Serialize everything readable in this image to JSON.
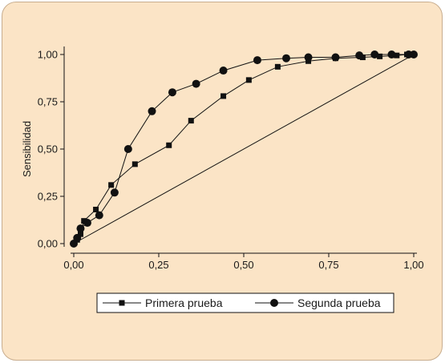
{
  "chart_data": {
    "type": "line",
    "title": "",
    "xlabel": "",
    "ylabel": "Sensibilidad",
    "xlim": [
      0,
      1
    ],
    "ylim": [
      0,
      1
    ],
    "x_ticks": [
      "0,00",
      "0,25",
      "0,50",
      "0,75",
      "1,00"
    ],
    "y_ticks": [
      "0,00",
      "0,25",
      "0,50",
      "0,75",
      "1,00"
    ],
    "grid": false,
    "legend_position": "bottom",
    "reference_line": [
      [
        0,
        0
      ],
      [
        1,
        1
      ]
    ],
    "series": [
      {
        "name": "Primera prueba",
        "marker": "square",
        "points": [
          [
            0.0,
            0.0
          ],
          [
            0.01,
            0.02
          ],
          [
            0.02,
            0.05
          ],
          [
            0.03,
            0.12
          ],
          [
            0.065,
            0.18
          ],
          [
            0.11,
            0.31
          ],
          [
            0.18,
            0.42
          ],
          [
            0.28,
            0.52
          ],
          [
            0.345,
            0.65
          ],
          [
            0.44,
            0.78
          ],
          [
            0.515,
            0.865
          ],
          [
            0.6,
            0.935
          ],
          [
            0.69,
            0.965
          ],
          [
            0.77,
            0.98
          ],
          [
            0.85,
            0.985
          ],
          [
            0.9,
            0.99
          ],
          [
            0.95,
            0.995
          ],
          [
            0.98,
            1.0
          ],
          [
            1.0,
            1.0
          ]
        ]
      },
      {
        "name": "Segunda prueba",
        "marker": "circle",
        "points": [
          [
            0.0,
            0.0
          ],
          [
            0.01,
            0.03
          ],
          [
            0.02,
            0.08
          ],
          [
            0.04,
            0.11
          ],
          [
            0.075,
            0.15
          ],
          [
            0.12,
            0.27
          ],
          [
            0.16,
            0.5
          ],
          [
            0.23,
            0.7
          ],
          [
            0.29,
            0.8
          ],
          [
            0.36,
            0.845
          ],
          [
            0.44,
            0.915
          ],
          [
            0.54,
            0.97
          ],
          [
            0.625,
            0.98
          ],
          [
            0.69,
            0.985
          ],
          [
            0.77,
            0.985
          ],
          [
            0.84,
            0.995
          ],
          [
            0.885,
            1.0
          ],
          [
            0.935,
            1.0
          ],
          [
            0.985,
            1.0
          ],
          [
            1.0,
            1.0
          ]
        ]
      }
    ]
  },
  "style": {
    "background": "#fbe4c6",
    "border": "#c8ad8e",
    "ink": "#111111",
    "legend_bg": "#ffffff"
  }
}
